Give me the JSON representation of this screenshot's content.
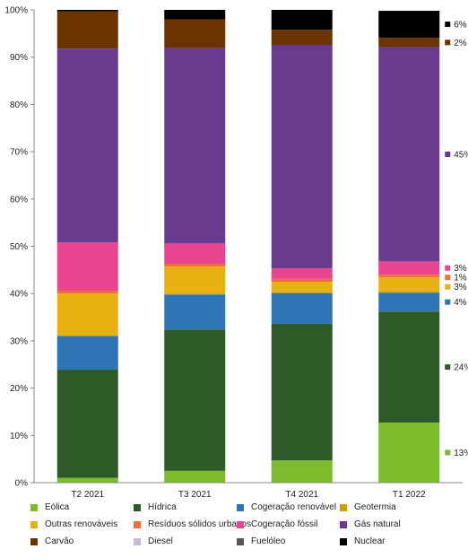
{
  "chart_data": {
    "type": "bar",
    "stacked": true,
    "categories": [
      "T2 2021",
      "T3 2021",
      "T4 2021",
      "T1 2022"
    ],
    "y_ticks": [
      "0%",
      "10%",
      "20%",
      "30%",
      "40%",
      "50%",
      "60%",
      "70%",
      "80%",
      "90%",
      "100%"
    ],
    "ylim": [
      0,
      100
    ],
    "grid": false,
    "legend_position": "bottom",
    "series": [
      {
        "name": "Eólica",
        "color": "#7cbb2c",
        "values": [
          1.0,
          2.5,
          4.7,
          12.7
        ]
      },
      {
        "name": "Hídrica",
        "color": "#2d5a27",
        "values": [
          22.9,
          29.9,
          28.9,
          23.5
        ]
      },
      {
        "name": "Cogeração renovável",
        "color": "#2e75b6",
        "values": [
          7.1,
          7.4,
          6.5,
          4.0
        ]
      },
      {
        "name": "Geotermia",
        "color": "#c9a100",
        "values": [
          0.2,
          0.2,
          0.2,
          0.2
        ]
      },
      {
        "name": "Outras renováveis",
        "color": "#e8b010",
        "values": [
          8.8,
          5.7,
          2.2,
          3.0
        ]
      },
      {
        "name": "Resíduos sólidos urbanos",
        "color": "#ef6e3a",
        "values": [
          0.6,
          0.6,
          0.6,
          0.6
        ]
      },
      {
        "name": "Cogeração fóssil",
        "color": "#e8448f",
        "values": [
          10.2,
          4.3,
          2.2,
          2.8
        ]
      },
      {
        "name": "Gás natural",
        "color": "#6a3a8e",
        "values": [
          41.0,
          41.3,
          47.3,
          45.3
        ]
      },
      {
        "name": "Carvão",
        "color": "#6b3300",
        "values": [
          7.9,
          6.1,
          3.2,
          2.0
        ]
      },
      {
        "name": "Diesel",
        "color": "#c8b8d0",
        "values": [
          0.0,
          0.0,
          0.0,
          0.0
        ]
      },
      {
        "name": "Fuelóleo",
        "color": "#555555",
        "values": [
          0.0,
          0.0,
          0.0,
          0.0
        ]
      },
      {
        "name": "Nuclear",
        "color": "#000000",
        "values": [
          0.3,
          2.0,
          4.2,
          5.7
        ]
      }
    ],
    "annotations": [
      {
        "series": "Nuclear",
        "text": "6%"
      },
      {
        "series": "Carvão",
        "text": "2%"
      },
      {
        "series": "Gás natural",
        "text": "45%"
      },
      {
        "series": "Cogeração fóssil",
        "text": "3%"
      },
      {
        "series": "Resíduos sólidos urbanos",
        "text": "1%"
      },
      {
        "series": "Outras renováveis",
        "text": "3%"
      },
      {
        "series": "Cogeração renovável",
        "text": "4%"
      },
      {
        "series": "Hídrica",
        "text": "24%"
      },
      {
        "series": "Eólica",
        "text": "13%"
      }
    ]
  }
}
